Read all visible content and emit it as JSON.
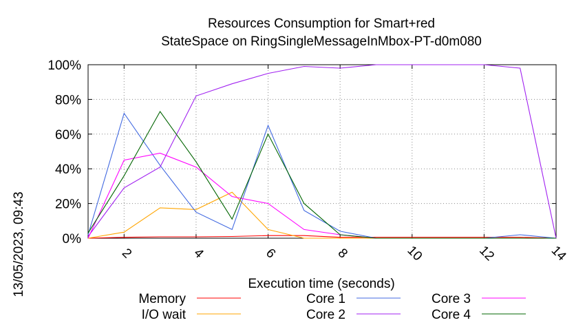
{
  "chart_data": {
    "type": "line",
    "title_line1": "Resources Consumption for Smart+red",
    "title_line2": "StateSpace on RingSingleMessageInMbox-PT-d0m080",
    "xlabel": "Execution time (seconds)",
    "ylabel": "",
    "side_label": "13/05/2023, 09:43",
    "xlim": [
      1,
      14
    ],
    "ylim": [
      0,
      100
    ],
    "x_ticks": [
      2,
      4,
      6,
      8,
      10,
      12,
      14
    ],
    "y_ticks": [
      0,
      20,
      40,
      60,
      80,
      100
    ],
    "y_tick_labels": [
      "0%",
      "20%",
      "40%",
      "60%",
      "80%",
      "100%"
    ],
    "grid": true,
    "legend_position": "bottom",
    "x": [
      1,
      2,
      3,
      4,
      5,
      6,
      7,
      8,
      9,
      10,
      11,
      12,
      13,
      14
    ],
    "series": [
      {
        "name": "Memory",
        "color": "#ff0000",
        "values": [
          0,
          0.5,
          0.8,
          0.8,
          1,
          1.5,
          1.5,
          0.5,
          0.5,
          0.5,
          0.5,
          0.5,
          0.5,
          0
        ]
      },
      {
        "name": "I/O wait",
        "color": "#ffa500",
        "values": [
          0,
          3.5,
          17.5,
          16.5,
          26.5,
          5,
          0,
          0,
          0,
          0,
          0,
          0,
          0,
          0
        ]
      },
      {
        "name": "Core 1",
        "color": "#4169e1",
        "values": [
          2,
          72,
          42,
          15,
          5,
          65,
          16,
          4,
          0,
          0,
          0,
          0,
          2,
          0
        ]
      },
      {
        "name": "Core 2",
        "color": "#a020f0",
        "values": [
          1,
          29,
          41,
          82,
          89,
          95,
          99,
          98,
          100,
          100,
          100,
          100,
          98,
          0
        ]
      },
      {
        "name": "Core 3",
        "color": "#ff00ff",
        "values": [
          0,
          45,
          49,
          41,
          24,
          20,
          5,
          2,
          0,
          0,
          0,
          0,
          0,
          0
        ]
      },
      {
        "name": "Core 4",
        "color": "#006400",
        "values": [
          3,
          36,
          73,
          44,
          11,
          60,
          20,
          2,
          0,
          0,
          0,
          0,
          0,
          0
        ]
      }
    ]
  }
}
